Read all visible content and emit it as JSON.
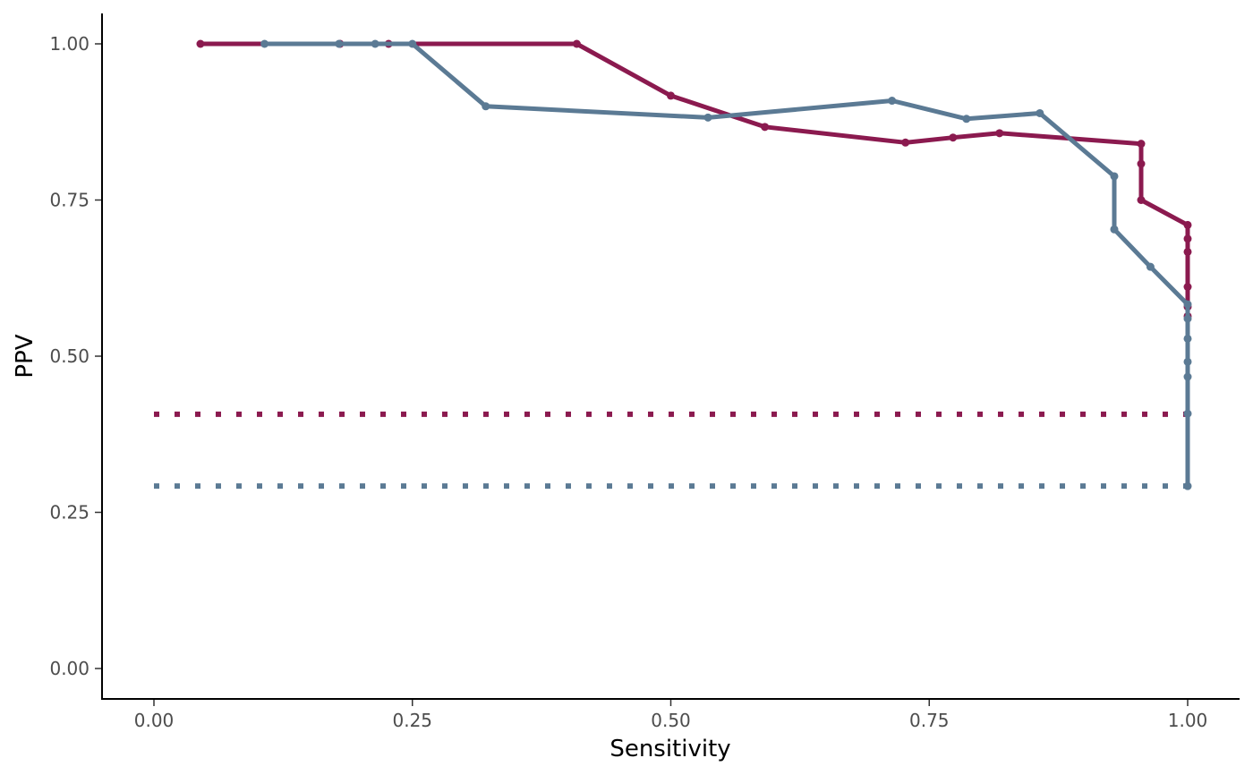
{
  "chart_data": {
    "type": "line",
    "title": "",
    "xlabel": "Sensitivity",
    "ylabel": "PPV",
    "xlim": [
      -0.05,
      1.05
    ],
    "ylim": [
      -0.05,
      1.05
    ],
    "x_ticks": [
      "0.00",
      "0.25",
      "0.50",
      "0.75",
      "1.00"
    ],
    "y_ticks": [
      "0.00",
      "0.25",
      "0.50",
      "0.75",
      "1.00"
    ],
    "grid": false,
    "legend": "none",
    "series": [
      {
        "color": "#8B1A4F",
        "points": [
          [
            0.045,
            1.0
          ],
          [
            0.18,
            1.0
          ],
          [
            0.227,
            1.0
          ],
          [
            0.409,
            1.0
          ],
          [
            0.5,
            0.917
          ],
          [
            0.591,
            0.867
          ],
          [
            0.727,
            0.842
          ],
          [
            0.773,
            0.85
          ],
          [
            0.818,
            0.857
          ],
          [
            0.955,
            0.84
          ],
          [
            0.955,
            0.808
          ],
          [
            0.955,
            0.75
          ],
          [
            1.0,
            0.71
          ],
          [
            1.0,
            0.688
          ],
          [
            1.0,
            0.667
          ],
          [
            1.0,
            0.611
          ],
          [
            1.0,
            0.579
          ],
          [
            1.0,
            0.564
          ]
        ],
        "baseline": 0.407
      },
      {
        "color": "#5B7A94",
        "points": [
          [
            0.107,
            1.0
          ],
          [
            0.179,
            1.0
          ],
          [
            0.214,
            1.0
          ],
          [
            0.25,
            1.0
          ],
          [
            0.321,
            0.9
          ],
          [
            0.536,
            0.882
          ],
          [
            0.714,
            0.909
          ],
          [
            0.786,
            0.88
          ],
          [
            0.857,
            0.889
          ],
          [
            0.929,
            0.788
          ],
          [
            0.929,
            0.703
          ],
          [
            0.964,
            0.643
          ],
          [
            1.0,
            0.583
          ],
          [
            1.0,
            0.56
          ],
          [
            1.0,
            0.528
          ],
          [
            1.0,
            0.491
          ],
          [
            1.0,
            0.467
          ],
          [
            1.0,
            0.408
          ],
          [
            1.0,
            0.292
          ]
        ],
        "baseline": 0.292
      }
    ]
  }
}
